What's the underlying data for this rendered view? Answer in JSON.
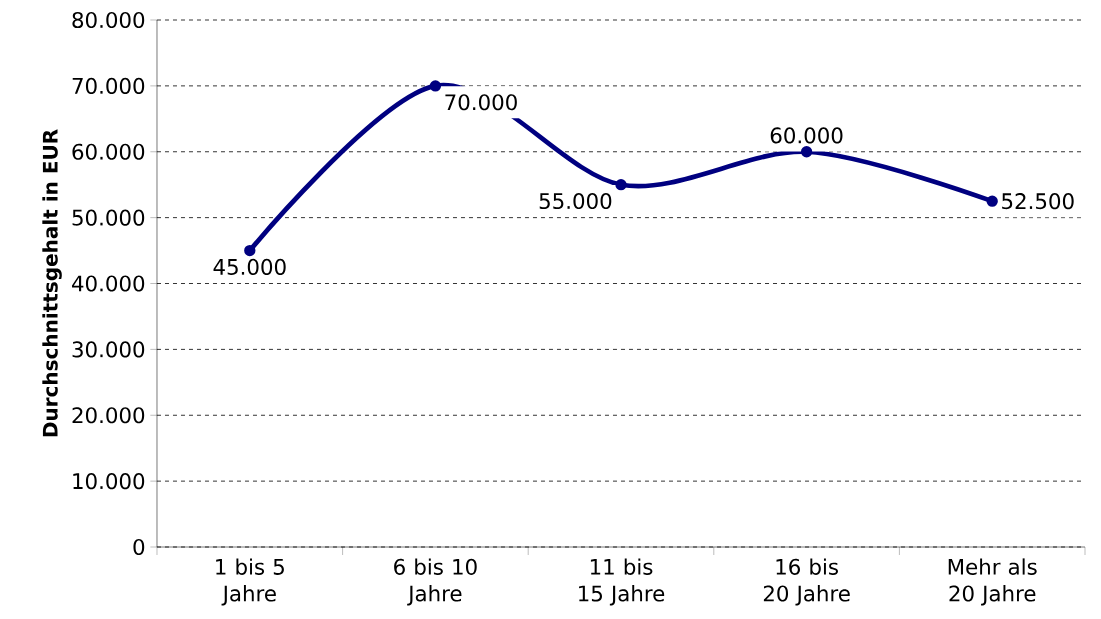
{
  "chart_data": {
    "type": "line",
    "ylabel": "Durchschnittsgehalt in EUR",
    "categories": [
      "1 bis 5 Jahre",
      "6 bis 10 Jahre",
      "11 bis 15 Jahre",
      "16 bis 20 Jahre",
      "Mehr als 20 Jahre"
    ],
    "values": [
      45000,
      70000,
      55000,
      60000,
      52500
    ],
    "value_labels": [
      "45.000",
      "70.000",
      "55.000",
      "60.000",
      "52.500"
    ],
    "color": "#000080",
    "ylim": [
      0,
      80000
    ],
    "yticks": [
      0,
      {
        "value": 10000,
        "label": "10.000"
      },
      {
        "value": 20000,
        "label": "20.000"
      },
      {
        "value": 30000,
        "label": "30.000"
      },
      {
        "value": 40000,
        "label": "40.000"
      },
      {
        "value": 50000,
        "label": "50.000"
      },
      {
        "value": 60000,
        "label": "60.000"
      },
      {
        "value": 70000,
        "label": "70.000"
      },
      {
        "value": 80000,
        "label": "80.000"
      }
    ],
    "grid": "y",
    "marker": "circle",
    "line_style": "solid"
  }
}
